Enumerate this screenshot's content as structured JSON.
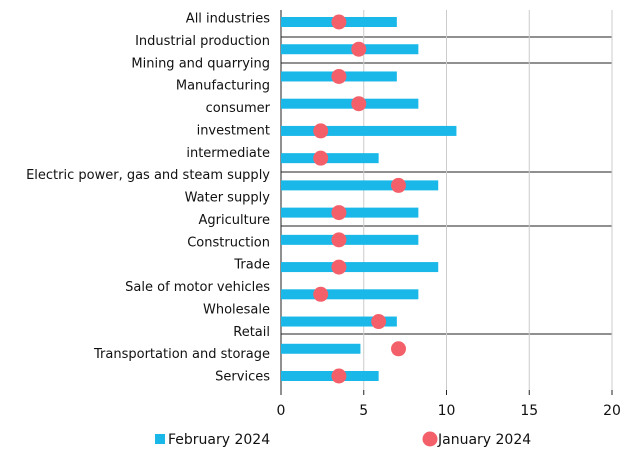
{
  "chart_data": {
    "type": "bar",
    "orientation": "horizontal",
    "categories": [
      "All industries",
      "Industrial production",
      "Mining and quarrying",
      "Manufacturing",
      "consumer",
      "investment",
      "intermediate",
      "Electric power, gas and steam supply",
      "Water supply",
      "Agriculture",
      "Construction",
      "Trade",
      "Sale of motor vehicles",
      "Wholesale",
      "Retail",
      "Transportation and storage",
      "Services"
    ],
    "series": [
      {
        "name": "February 2024",
        "color": "#1ab8e8",
        "marker": "bar",
        "values": [
          7.0,
          8.3,
          null,
          7.0,
          8.3,
          10.6,
          5.9,
          9.5,
          null,
          8.3,
          8.3,
          9.5,
          8.3,
          7.0,
          null,
          4.8,
          5.9
        ]
      },
      {
        "name": "January 2024",
        "color": "#f4606a",
        "marker": "dot",
        "values": [
          3.5,
          4.7,
          null,
          3.5,
          4.7,
          2.4,
          2.4,
          7.1,
          null,
          3.5,
          3.5,
          3.5,
          2.4,
          5.9,
          null,
          7.1,
          3.5
        ]
      }
    ],
    "xlim": [
      0,
      20
    ],
    "xticks": [
      0,
      5,
      10,
      15,
      20
    ],
    "grid": true
  }
}
